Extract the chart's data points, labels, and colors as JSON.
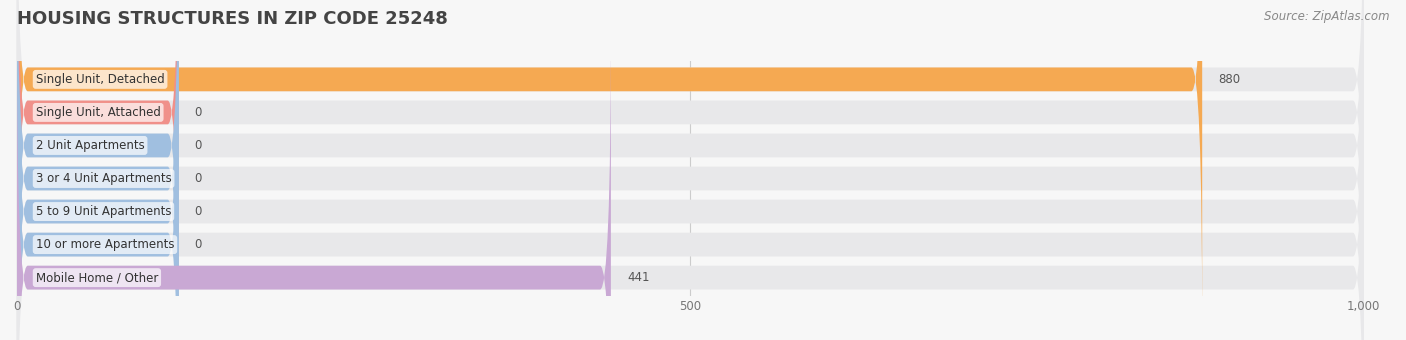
{
  "title": "HOUSING STRUCTURES IN ZIP CODE 25248",
  "source": "Source: ZipAtlas.com",
  "categories": [
    "Single Unit, Detached",
    "Single Unit, Attached",
    "2 Unit Apartments",
    "3 or 4 Unit Apartments",
    "5 to 9 Unit Apartments",
    "10 or more Apartments",
    "Mobile Home / Other"
  ],
  "values": [
    880,
    0,
    0,
    0,
    0,
    0,
    441
  ],
  "bar_colors": [
    "#F5A952",
    "#F0908A",
    "#A0BFE0",
    "#A0BFE0",
    "#A0BFE0",
    "#A0BFE0",
    "#C9A8D4"
  ],
  "background_color": "#f7f7f7",
  "bar_bg_color": "#e8e8ea",
  "xlim": [
    0,
    1000
  ],
  "xticks": [
    0,
    500,
    1000
  ],
  "title_fontsize": 13,
  "label_fontsize": 8.5,
  "value_fontsize": 8.5,
  "source_fontsize": 8.5,
  "zero_bar_width": 120
}
